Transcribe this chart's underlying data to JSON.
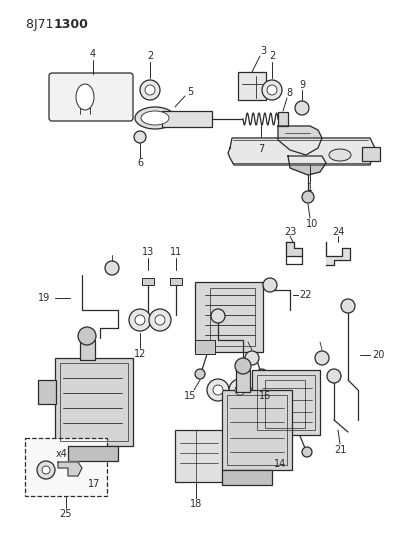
{
  "background_color": "#ffffff",
  "line_color": "#2a2a2a",
  "title_normal": "8J71 ",
  "title_bold": "1300",
  "fig_w": 4.01,
  "fig_h": 5.33,
  "dpi": 100
}
